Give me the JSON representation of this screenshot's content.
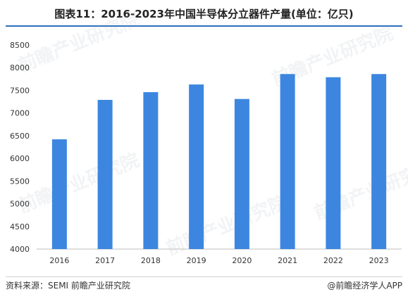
{
  "header": {
    "title": "图表11：2016-2023年中国半导体分立器件产量(单位：亿只)"
  },
  "watermark": {
    "text": "前瞻产业研究院"
  },
  "footer": {
    "source": "资料来源：SEMI 前瞻产业研究院",
    "brand": "@前瞻经济学人APP"
  },
  "colors": {
    "bar": "#3c86e0",
    "rule": "#2f6fbf"
  },
  "chart_data": {
    "type": "bar",
    "title": "图表11：2016-2023年中国半导体分立器件产量(单位：亿只)",
    "xlabel": "",
    "ylabel": "",
    "categories": [
      "2016",
      "2017",
      "2018",
      "2019",
      "2020",
      "2021",
      "2022",
      "2023"
    ],
    "values": [
      6420,
      7290,
      7460,
      7630,
      7310,
      7860,
      7790,
      7860
    ],
    "ylim": [
      4000,
      8500
    ],
    "yticks": [
      4000,
      4500,
      5000,
      5500,
      6000,
      6500,
      7000,
      7500,
      8000,
      8500
    ],
    "grid": false,
    "legend": "none"
  }
}
